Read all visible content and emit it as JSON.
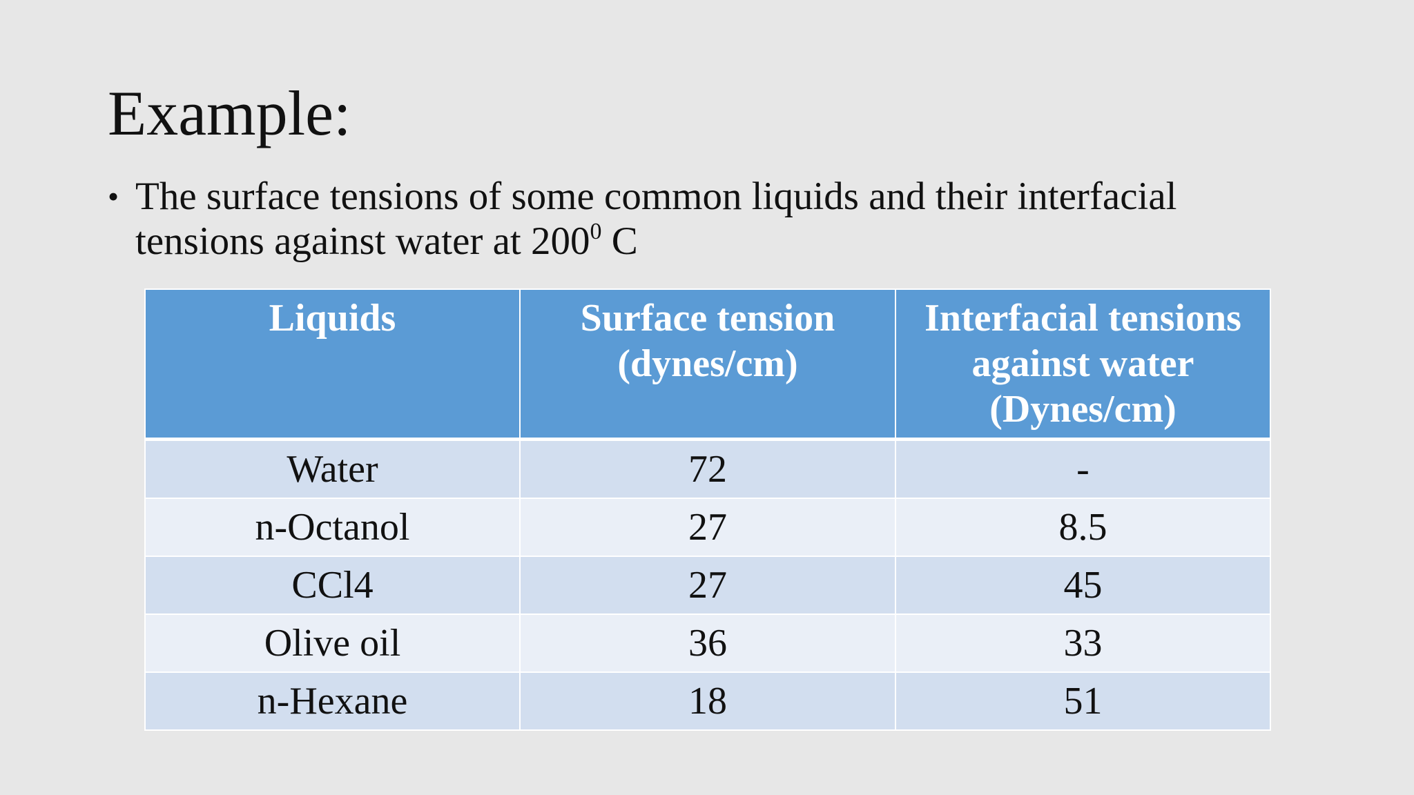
{
  "title": "Example:",
  "bullet": {
    "text": "The surface tensions of some common liquids and their interfacial tensions against water at 200",
    "superscript": "0",
    "suffix": " C"
  },
  "table": {
    "header": [
      "Liquids",
      "Surface tension (dynes/cm)",
      "Interfacial tensions against water (Dynes/cm)"
    ],
    "rows": [
      [
        "Water",
        72,
        "-"
      ],
      [
        "n-Octanol",
        27,
        8.5
      ],
      [
        "CCl4",
        27,
        45
      ],
      [
        "Olive oil",
        36,
        33
      ],
      [
        "n-Hexane",
        18,
        51
      ]
    ]
  }
}
